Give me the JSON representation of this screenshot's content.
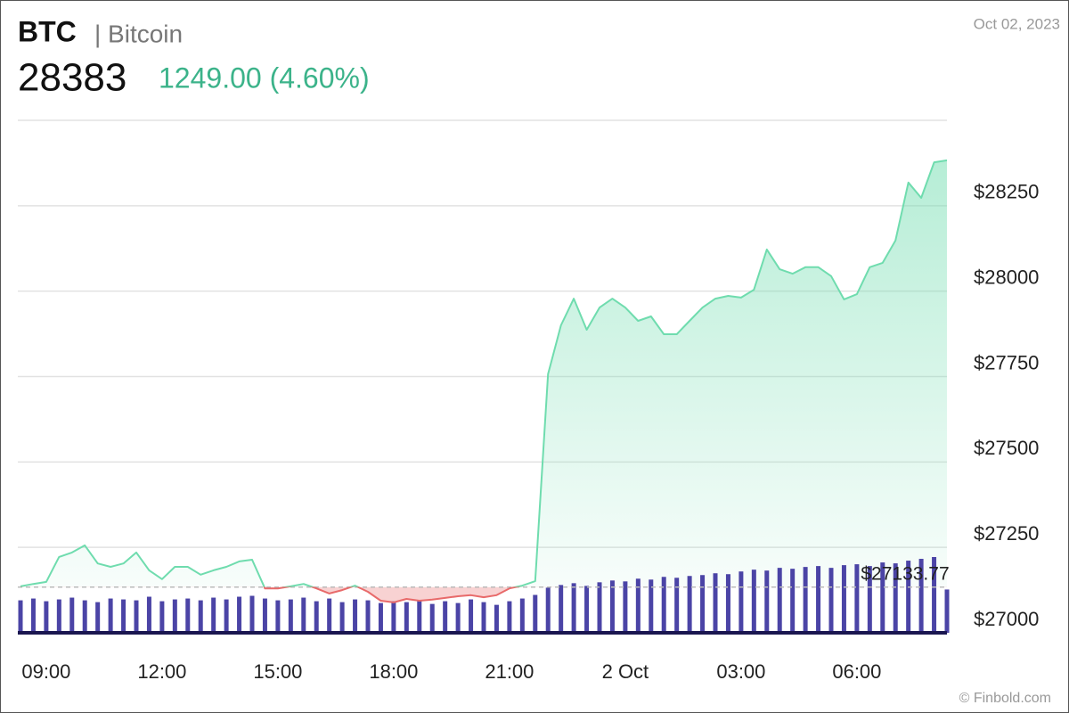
{
  "header": {
    "symbol": "BTC",
    "name": "| Bitcoin",
    "price": 28383,
    "change": "1249.00 (4.60%)",
    "date": "Oct 02, 2023",
    "credit": "© Finbold.com"
  },
  "chart_data": {
    "type": "line",
    "categories": [
      null,
      null,
      "09:00",
      null,
      null,
      null,
      null,
      null,
      null,
      null,
      null,
      "12:00",
      null,
      null,
      null,
      null,
      null,
      null,
      null,
      null,
      "15:00",
      null,
      null,
      null,
      null,
      null,
      null,
      null,
      null,
      "18:00",
      null,
      null,
      null,
      null,
      null,
      null,
      null,
      null,
      "21:00",
      null,
      null,
      null,
      null,
      null,
      null,
      null,
      null,
      "2 Oct",
      null,
      null,
      null,
      null,
      null,
      null,
      null,
      null,
      "03:00",
      null,
      null,
      null,
      null,
      null,
      null,
      null,
      null,
      "06:00",
      null,
      null,
      null,
      null,
      null,
      null,
      null
    ],
    "series": [
      {
        "name": "BTC",
        "color": "#6fdcae",
        "down_color": "#e86a6a",
        "values": [
          27136,
          27143,
          27149,
          27222,
          27235,
          27256,
          27203,
          27193,
          27203,
          27235,
          27183,
          27157,
          27193,
          27193,
          27170,
          27183,
          27193,
          27209,
          27214,
          27130,
          27130,
          27136,
          27143,
          27130,
          27115,
          27125,
          27138,
          27120,
          27094,
          27089,
          27099,
          27094,
          27097,
          27102,
          27107,
          27110,
          27104,
          27110,
          27130,
          27138,
          27151,
          27757,
          27900,
          27978,
          27887,
          27952,
          27978,
          27952,
          27913,
          27926,
          27874,
          27874,
          27913,
          27952,
          27978,
          27986,
          27981,
          28004,
          28122,
          28064,
          28051,
          28070,
          28070,
          28044,
          27976,
          27991,
          28070,
          28083,
          28148,
          28318,
          28273,
          28377,
          28383
        ]
      }
    ],
    "volume": {
      "color": "#4b44a6",
      "values": [
        36,
        38,
        35,
        37,
        39,
        36,
        34,
        38,
        37,
        36,
        40,
        35,
        37,
        38,
        36,
        39,
        37,
        40,
        41,
        38,
        36,
        37,
        39,
        35,
        38,
        34,
        37,
        36,
        33,
        35,
        34,
        36,
        32,
        35,
        33,
        37,
        34,
        31,
        35,
        38,
        42,
        50,
        53,
        55,
        52,
        56,
        58,
        57,
        60,
        59,
        62,
        61,
        63,
        64,
        66,
        65,
        68,
        70,
        69,
        72,
        71,
        73,
        74,
        72,
        75,
        76,
        74,
        78,
        77,
        80,
        82,
        84,
        48
      ]
    },
    "baseline": {
      "value": 27133.77,
      "label": "$27133.77"
    },
    "ylim": [
      27000,
      28500
    ],
    "yticks": [
      {
        "value": 27000,
        "label": "$27000"
      },
      {
        "value": 27250,
        "label": "$27250"
      },
      {
        "value": 27500,
        "label": "$27500"
      },
      {
        "value": 27750,
        "label": "$27750"
      },
      {
        "value": 28000,
        "label": "$28000"
      },
      {
        "value": 28250,
        "label": "$28250"
      }
    ],
    "grid": true
  }
}
